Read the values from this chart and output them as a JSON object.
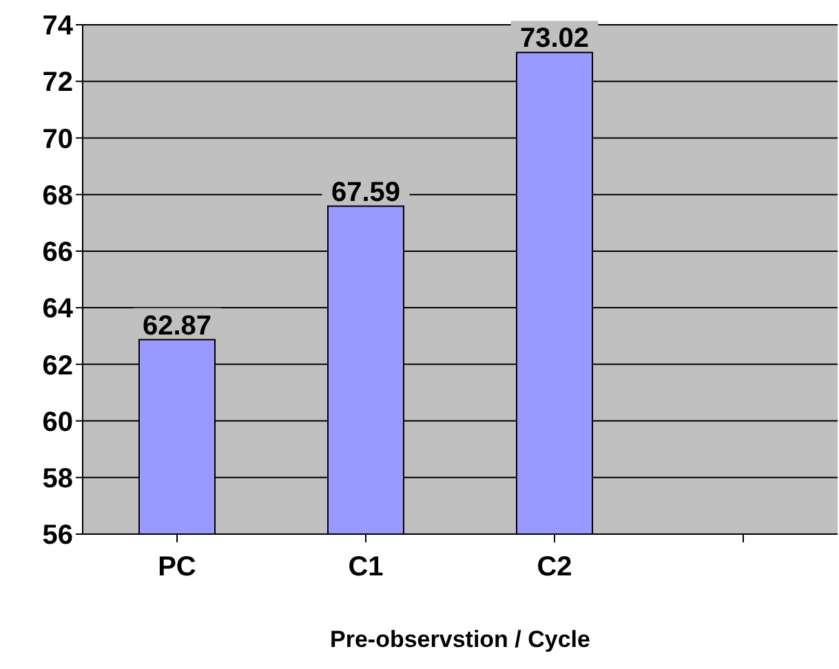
{
  "chart_data": {
    "type": "bar",
    "xlabel": "Pre-observstion / Cycle",
    "categories": [
      "PC",
      "C1",
      "C2",
      null
    ],
    "values": [
      62.87,
      67.59,
      73.02,
      null
    ],
    "color": "#9999ff",
    "ylim": [
      56,
      74
    ],
    "yticks": [
      56,
      58,
      60,
      62,
      64,
      66,
      68,
      70,
      72,
      74
    ],
    "grid": "y",
    "data_labels": true
  }
}
